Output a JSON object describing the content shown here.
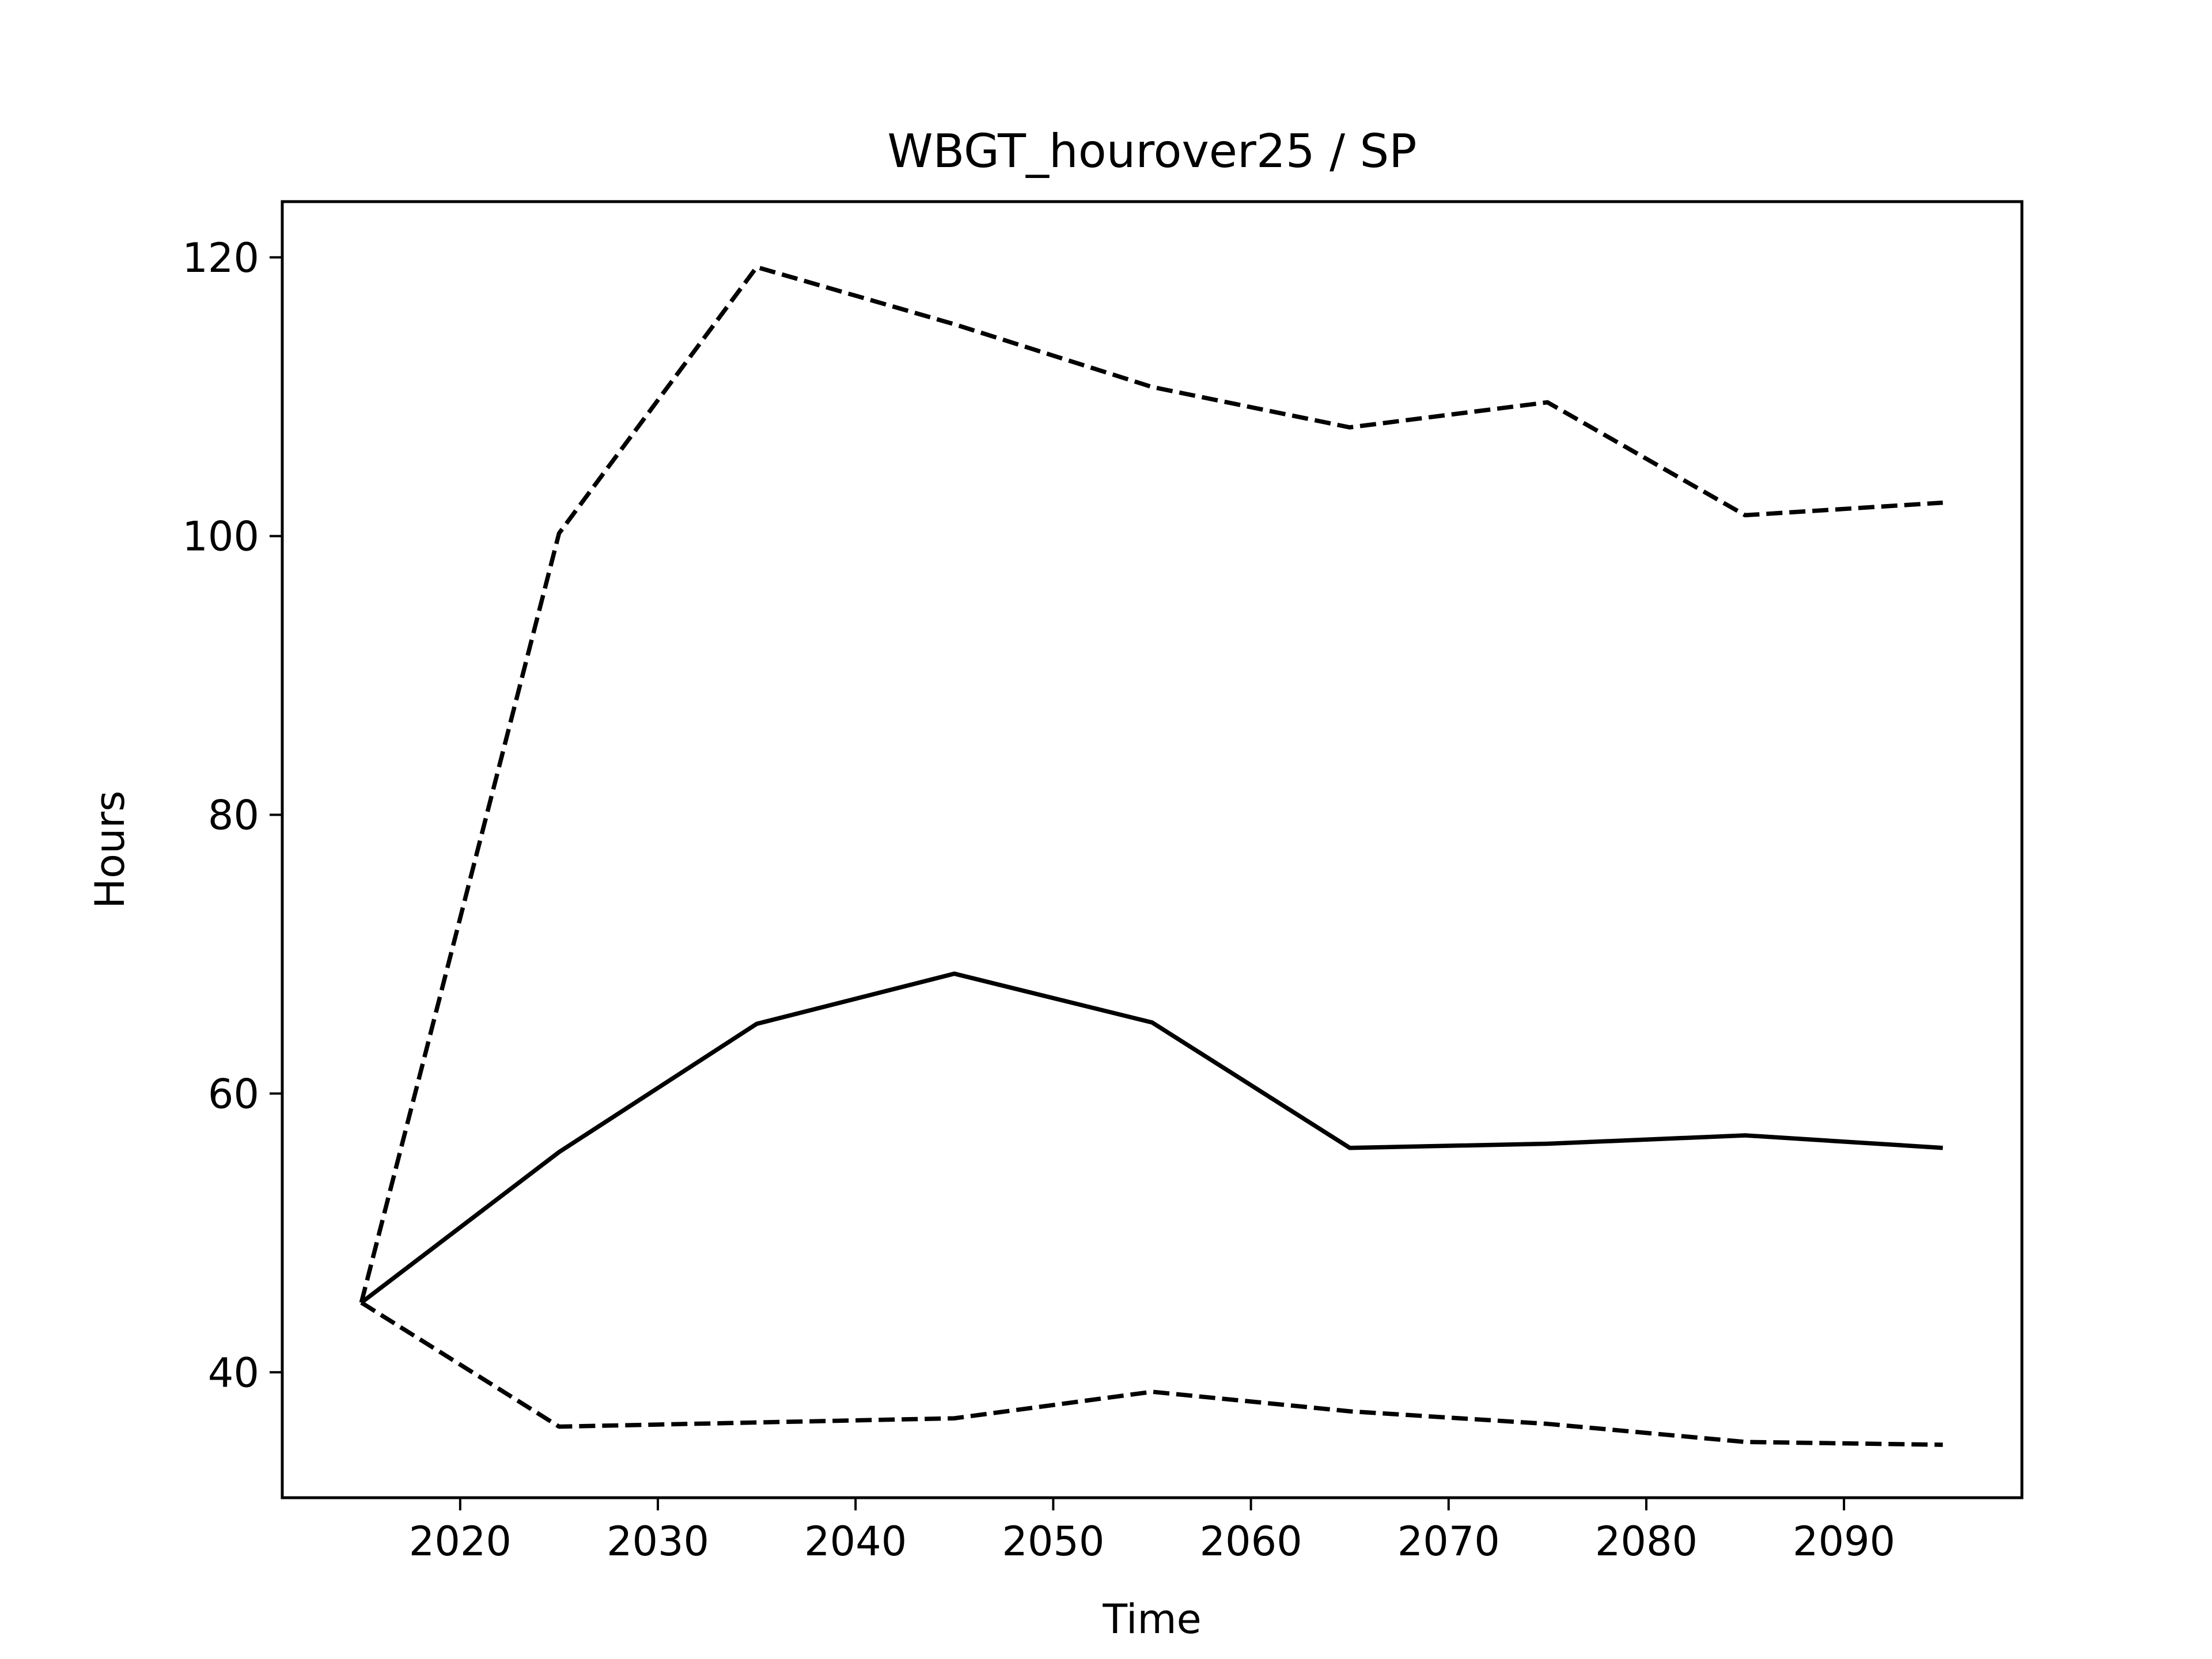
{
  "chart_data": {
    "type": "line",
    "title": "WBGT_hourover25 / SP",
    "xlabel": "Time",
    "ylabel": "Hours",
    "x": [
      2015,
      2025,
      2035,
      2045,
      2055,
      2065,
      2075,
      2085,
      2095
    ],
    "series": [
      {
        "style": "solid",
        "values": [
          45.0,
          55.8,
          65.0,
          68.6,
          65.1,
          56.1,
          56.4,
          57.0,
          56.1
        ]
      },
      {
        "style": "dashed",
        "values": [
          45.0,
          100.2,
          119.3,
          115.2,
          110.7,
          107.8,
          109.6,
          101.5,
          102.4
        ]
      },
      {
        "style": "dashed",
        "values": [
          45.0,
          36.1,
          36.4,
          36.7,
          38.6,
          37.2,
          36.3,
          35.0,
          34.8
        ]
      }
    ],
    "xticks": [
      2020,
      2030,
      2040,
      2050,
      2060,
      2070,
      2080,
      2090
    ],
    "yticks": [
      40,
      60,
      80,
      100,
      120
    ],
    "xlim": [
      2011,
      2099
    ],
    "ylim": [
      31,
      124
    ],
    "grid": false,
    "line_color": "#000000"
  }
}
